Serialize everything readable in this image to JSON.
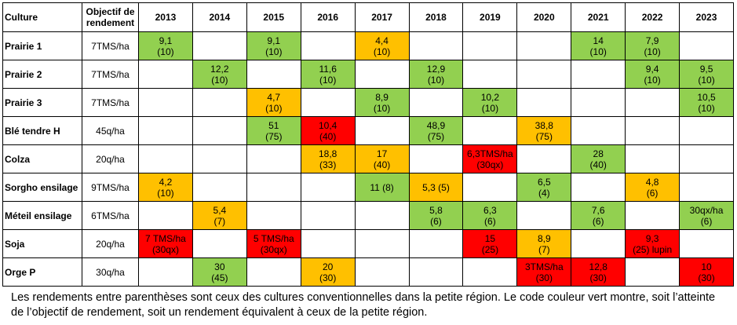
{
  "table": {
    "header": [
      "Culture",
      "Objectif de rendement",
      "2013",
      "2014",
      "2015",
      "2016",
      "2017",
      "2018",
      "2019",
      "2020",
      "2021",
      "2022",
      "2023"
    ],
    "rows": [
      {
        "culture": "Prairie 1",
        "objectif": "7TMS/ha",
        "cells": [
          {
            "lines": [
              "9,1",
              "(10)"
            ],
            "color": "#92d050"
          },
          null,
          {
            "lines": [
              "9,1",
              "(10)"
            ],
            "color": "#92d050"
          },
          null,
          {
            "lines": [
              "4,4",
              "(10)"
            ],
            "color": "#ffc000"
          },
          null,
          null,
          null,
          {
            "lines": [
              "14",
              "(10)"
            ],
            "color": "#92d050"
          },
          {
            "lines": [
              "7,9",
              "(10)"
            ],
            "color": "#92d050"
          },
          null
        ]
      },
      {
        "culture": "Prairie 2",
        "objectif": "7TMS/ha",
        "cells": [
          null,
          {
            "lines": [
              "12,2",
              "(10)"
            ],
            "color": "#92d050"
          },
          null,
          {
            "lines": [
              "11,6",
              "(10)"
            ],
            "color": "#92d050"
          },
          null,
          {
            "lines": [
              "12,9",
              "(10)"
            ],
            "color": "#92d050"
          },
          null,
          null,
          null,
          {
            "lines": [
              "9,4",
              "(10)"
            ],
            "color": "#92d050"
          },
          {
            "lines": [
              "9,5",
              "(10)"
            ],
            "color": "#92d050"
          }
        ]
      },
      {
        "culture": "Prairie 3",
        "objectif": "7TMS/ha",
        "cells": [
          null,
          null,
          {
            "lines": [
              "4,7",
              "(10)"
            ],
            "color": "#ffc000"
          },
          null,
          {
            "lines": [
              "8,9",
              "(10)"
            ],
            "color": "#92d050"
          },
          null,
          {
            "lines": [
              "10,2",
              "(10)"
            ],
            "color": "#92d050"
          },
          null,
          null,
          null,
          {
            "lines": [
              "10,5",
              "(10)"
            ],
            "color": "#92d050"
          }
        ]
      },
      {
        "culture": "Blé tendre H",
        "objectif": "45q/ha",
        "cells": [
          null,
          null,
          {
            "lines": [
              "51",
              "(75)"
            ],
            "color": "#92d050"
          },
          {
            "lines": [
              "10,4",
              "(40)"
            ],
            "color": "#ff0000"
          },
          null,
          {
            "lines": [
              "48,9",
              "(75)"
            ],
            "color": "#92d050"
          },
          null,
          {
            "lines": [
              "38,8",
              "(75)"
            ],
            "color": "#ffc000"
          },
          null,
          null,
          null
        ]
      },
      {
        "culture": "Colza",
        "objectif": "20q/ha",
        "cells": [
          null,
          null,
          null,
          {
            "lines": [
              "18,8",
              "(33)"
            ],
            "color": "#ffc000"
          },
          {
            "lines": [
              "17",
              "(40)"
            ],
            "color": "#ffc000"
          },
          null,
          {
            "lines": [
              "6,3TMS/ha",
              "(30qx)"
            ],
            "color": "#ff0000"
          },
          null,
          {
            "lines": [
              "28",
              "(40)"
            ],
            "color": "#92d050"
          },
          null,
          null
        ]
      },
      {
        "culture": "Sorgho ensilage",
        "objectif": "9TMS/ha",
        "cells": [
          {
            "lines": [
              "4,2",
              "(10)"
            ],
            "color": "#ffc000"
          },
          null,
          null,
          null,
          {
            "lines": [
              "11 (8)"
            ],
            "color": "#92d050"
          },
          {
            "lines": [
              "5,3 (5)"
            ],
            "color": "#ffc000"
          },
          null,
          {
            "lines": [
              "6,5",
              "(4)"
            ],
            "color": "#92d050"
          },
          null,
          {
            "lines": [
              "4,8",
              "(6)"
            ],
            "color": "#ffc000"
          },
          null
        ]
      },
      {
        "culture": "Méteil ensilage",
        "objectif": "6TMS/ha",
        "cells": [
          null,
          {
            "lines": [
              "5,4",
              "(7)"
            ],
            "color": "#ffc000"
          },
          null,
          null,
          null,
          {
            "lines": [
              "5,8",
              "(6)"
            ],
            "color": "#92d050"
          },
          {
            "lines": [
              "6,3",
              "(6)"
            ],
            "color": "#92d050"
          },
          null,
          {
            "lines": [
              "7,6",
              "(6)"
            ],
            "color": "#92d050"
          },
          null,
          {
            "lines": [
              "30qx/ha",
              "(6)"
            ],
            "color": "#92d050"
          }
        ]
      },
      {
        "culture": "Soja",
        "objectif": "20q/ha",
        "cells": [
          {
            "lines": [
              "7 TMS/ha",
              "(30qx)"
            ],
            "color": "#ff0000"
          },
          null,
          {
            "lines": [
              "5 TMS/ha",
              "(30qx)"
            ],
            "color": "#ff0000"
          },
          null,
          null,
          null,
          {
            "lines": [
              "15",
              "(25)"
            ],
            "color": "#ff0000"
          },
          {
            "lines": [
              "8,9",
              "(7)"
            ],
            "color": "#ffc000"
          },
          null,
          {
            "lines": [
              "9,3",
              "(25) lupin"
            ],
            "color": "#ff0000"
          },
          null
        ]
      },
      {
        "culture": "Orge P",
        "objectif": "30q/ha",
        "cells": [
          null,
          {
            "lines": [
              "30",
              "(45)"
            ],
            "color": "#92d050"
          },
          null,
          {
            "lines": [
              "20",
              "(30)"
            ],
            "color": "#ffc000"
          },
          null,
          null,
          null,
          {
            "lines": [
              "3TMS/ha",
              "(30)"
            ],
            "color": "#ff0000"
          },
          {
            "lines": [
              "12,8",
              "(30)"
            ],
            "color": "#ff0000"
          },
          null,
          {
            "lines": [
              "10",
              "(30)"
            ],
            "color": "#ff0000"
          }
        ]
      }
    ]
  },
  "footnote": "Les rendements entre parenthèses sont ceux des cultures conventionnelles dans la petite région. Le code couleur vert montre, soit l’atteinte de l’objectif de rendement, soit un rendement équivalent à ceux de la petite région."
}
